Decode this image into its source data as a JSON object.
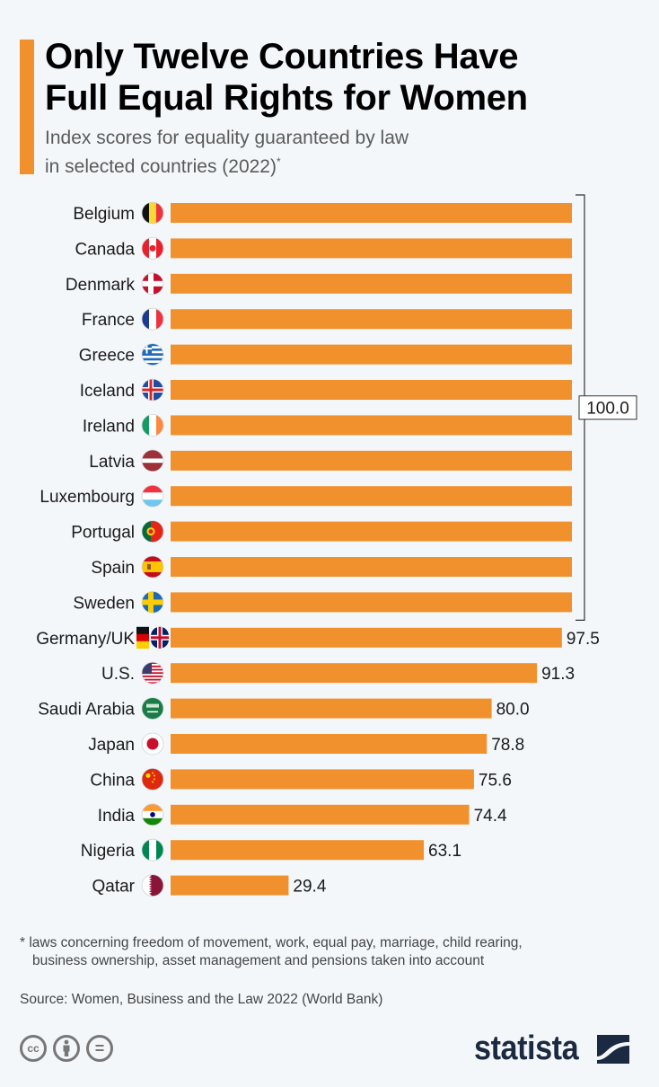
{
  "header": {
    "title_line1": "Only Twelve Countries Have",
    "title_line2": "Full Equal Rights for Women",
    "subtitle_line1": "Index scores for equality guaranteed by law",
    "subtitle_line2": "in selected countries (2022)",
    "subtitle_mark": "*"
  },
  "colors": {
    "bar": "#f0912d",
    "accent": "#f0912d",
    "text": "#1a1a1a",
    "logo": "#1b2a41",
    "background": "#f4f7fa"
  },
  "chart_data": {
    "type": "bar",
    "orientation": "horizontal",
    "title": "Only Twelve Countries Have Full Equal Rights for Women",
    "subtitle": "Index scores for equality guaranteed by law in selected countries (2022)*",
    "xlabel": "",
    "ylabel": "",
    "xlim": [
      0,
      100
    ],
    "grid": false,
    "categories": [
      "Belgium",
      "Canada",
      "Denmark",
      "France",
      "Greece",
      "Iceland",
      "Ireland",
      "Latvia",
      "Luxembourg",
      "Portugal",
      "Spain",
      "Sweden",
      "Germany/UK",
      "U.S.",
      "Saudi Arabia",
      "Japan",
      "China",
      "India",
      "Nigeria",
      "Qatar"
    ],
    "values": [
      100,
      100,
      100,
      100,
      100,
      100,
      100,
      100,
      100,
      100,
      100,
      100,
      97.5,
      91.3,
      80.0,
      78.8,
      75.6,
      74.4,
      63.1,
      29.4
    ],
    "value_labels": [
      "",
      "",
      "",
      "",
      "",
      "",
      "",
      "",
      "",
      "",
      "",
      "",
      "97.5",
      "91.3",
      "80.0",
      "78.8",
      "75.6",
      "74.4",
      "63.1",
      "29.4"
    ],
    "group_annotation": {
      "label": "100.0",
      "from": "Belgium",
      "to": "Sweden"
    },
    "flags": [
      "belgium-flag",
      "canada-flag",
      "denmark-flag",
      "france-flag",
      "greece-flag",
      "iceland-flag",
      "ireland-flag",
      "latvia-flag",
      "luxembourg-flag",
      "portugal-flag",
      "spain-flag",
      "sweden-flag",
      "germany-uk-flag",
      "us-flag",
      "saudi-arabia-flag",
      "japan-flag",
      "china-flag",
      "india-flag",
      "nigeria-flag",
      "qatar-flag"
    ]
  },
  "footer": {
    "footnote": "* laws concerning freedom of movement, work, equal pay, marriage, child rearing, business ownership, asset management and pensions taken into account",
    "source": "Source: Women, Business and the Law 2022 (World Bank)",
    "license_icons": [
      "cc-icon",
      "by-attribution-icon",
      "no-derivatives-icon"
    ],
    "cc_label": "cc",
    "nd_label": "=",
    "logo_text": "statista"
  }
}
